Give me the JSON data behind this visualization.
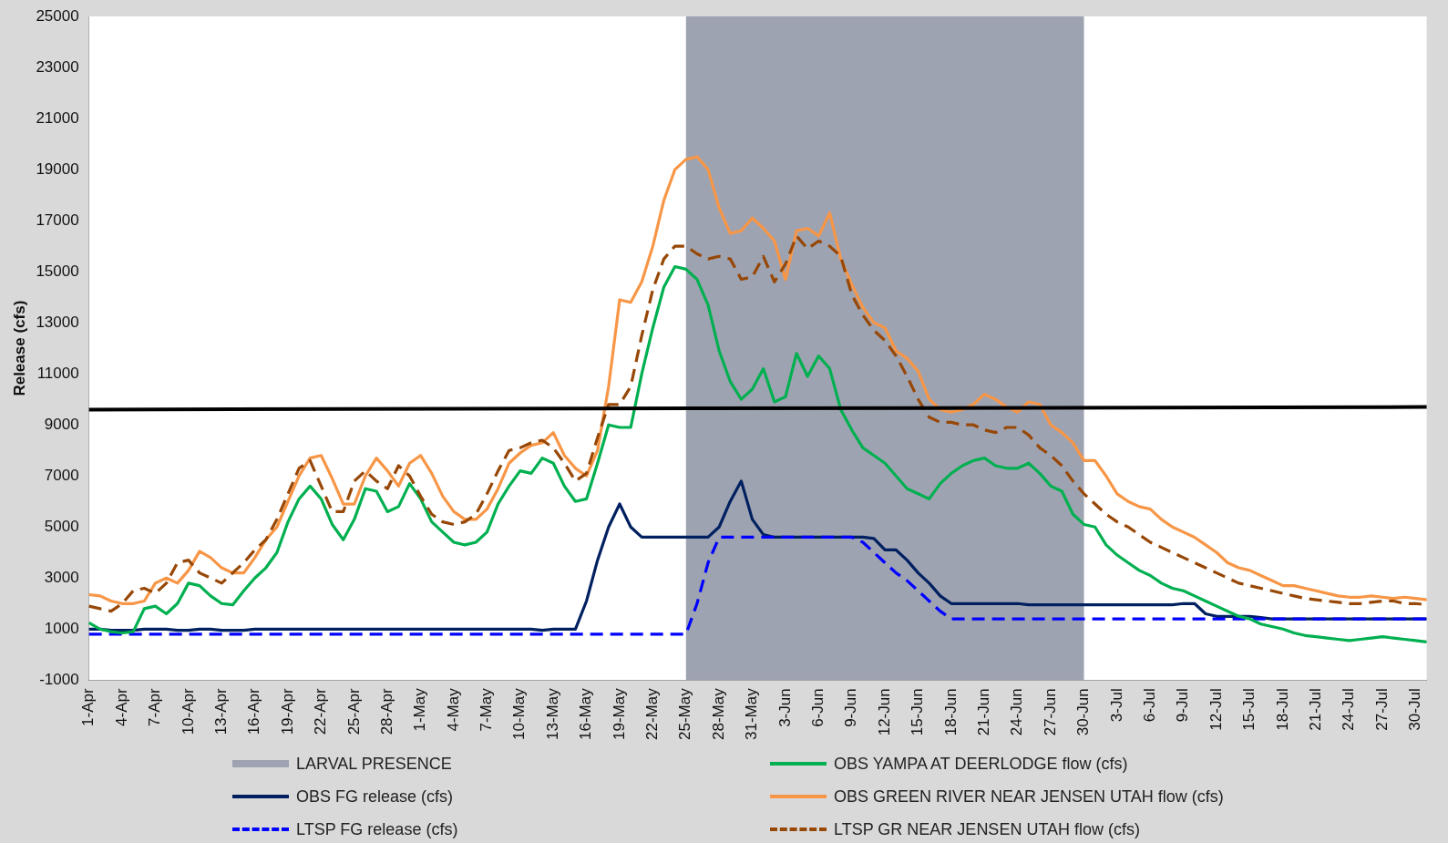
{
  "chart_data": {
    "type": "line",
    "ylabel": "Release (cfs)",
    "ylim": [
      -1000,
      25000
    ],
    "yticks": [
      -1000,
      1000,
      3000,
      5000,
      7000,
      9000,
      11000,
      13000,
      15000,
      17000,
      19000,
      21000,
      23000,
      25000
    ],
    "legend": "bottom",
    "marker": "none",
    "categories": [
      "1-Apr",
      null,
      null,
      "4-Apr",
      null,
      null,
      "7-Apr",
      null,
      null,
      "10-Apr",
      null,
      null,
      "13-Apr",
      null,
      null,
      "16-Apr",
      null,
      null,
      "19-Apr",
      null,
      null,
      "22-Apr",
      null,
      null,
      "25-Apr",
      null,
      null,
      "28-Apr",
      null,
      null,
      "1-May",
      null,
      null,
      "4-May",
      null,
      null,
      "7-May",
      null,
      null,
      "10-May",
      null,
      null,
      "13-May",
      null,
      null,
      "16-May",
      null,
      null,
      "19-May",
      null,
      null,
      "22-May",
      null,
      null,
      "25-May",
      null,
      null,
      "28-May",
      null,
      null,
      "31-May",
      null,
      null,
      "3-Jun",
      null,
      null,
      "6-Jun",
      null,
      null,
      "9-Jun",
      null,
      null,
      "12-Jun",
      null,
      null,
      "15-Jun",
      null,
      null,
      "18-Jun",
      null,
      null,
      "21-Jun",
      null,
      null,
      "24-Jun",
      null,
      null,
      "27-Jun",
      null,
      null,
      "30-Jun",
      null,
      null,
      "3-Jul",
      null,
      null,
      "6-Jul",
      null,
      null,
      "9-Jul",
      null,
      null,
      "12-Jul",
      null,
      null,
      "15-Jul",
      null,
      null,
      "18-Jul",
      null,
      null,
      "21-Jul",
      null,
      null,
      "24-Jul",
      null,
      null,
      "27-Jul",
      null,
      null,
      "30-Jul",
      null
    ],
    "bands": [
      {
        "axis": "x",
        "from": "25-May",
        "to": "30-Jun",
        "label": "LARVAL PRESENCE",
        "color": "#9ea3b2"
      }
    ],
    "series": [
      {
        "name": "OBS FG release (cfs)",
        "color": "#002060",
        "values": [
          1000,
          1000,
          950,
          950,
          950,
          1000,
          1000,
          1000,
          950,
          950,
          1000,
          1000,
          950,
          950,
          950,
          1000,
          1000,
          1000,
          1000,
          1000,
          1000,
          1000,
          1000,
          1000,
          1000,
          1000,
          1000,
          1000,
          1000,
          1000,
          1000,
          1000,
          1000,
          1000,
          1000,
          1000,
          1000,
          1000,
          1000,
          1000,
          1000,
          950,
          1000,
          1000,
          1000,
          2100,
          3700,
          5000,
          5900,
          5000,
          4600,
          4600,
          4600,
          4600,
          4600,
          4600,
          4600,
          5000,
          6000,
          6800,
          5300,
          4700,
          4600,
          4600,
          4600,
          4600,
          4600,
          4600,
          4600,
          4600,
          4600,
          4550,
          4100,
          4100,
          3700,
          3200,
          2800,
          2300,
          2000,
          2000,
          2000,
          2000,
          2000,
          2000,
          2000,
          1950,
          1950,
          1950,
          1950,
          1950,
          1950,
          1950,
          1950,
          1950,
          1950,
          1950,
          1950,
          1950,
          1950,
          2000,
          2000,
          1600,
          1500,
          1500,
          1500,
          1500,
          1450,
          1400,
          1400,
          1400,
          1400,
          1400,
          1400,
          1400,
          1400,
          1400,
          1400,
          1400,
          1400,
          1400,
          1400,
          1400
        ]
      },
      {
        "name": "LTSP FG release (cfs)",
        "color": "#0000ff",
        "line_style": "dashed",
        "values": [
          800,
          800,
          800,
          800,
          800,
          800,
          800,
          800,
          800,
          800,
          800,
          800,
          800,
          800,
          800,
          800,
          800,
          800,
          800,
          800,
          800,
          800,
          800,
          800,
          800,
          800,
          800,
          800,
          800,
          800,
          800,
          800,
          800,
          800,
          800,
          800,
          800,
          800,
          800,
          800,
          800,
          800,
          800,
          800,
          800,
          800,
          800,
          800,
          800,
          800,
          800,
          800,
          800,
          800,
          800,
          2000,
          3600,
          4600,
          4600,
          4600,
          4600,
          4600,
          4600,
          4600,
          4600,
          4600,
          4600,
          4600,
          4600,
          4600,
          4400,
          4000,
          3600,
          3200,
          2900,
          2500,
          2100,
          1700,
          1400,
          1400,
          1400,
          1400,
          1400,
          1400,
          1400,
          1400,
          1400,
          1400,
          1400,
          1400,
          1400,
          1400,
          1400,
          1400,
          1400,
          1400,
          1400,
          1400,
          1400,
          1400,
          1400,
          1400,
          1400,
          1400,
          1400,
          1400,
          1400,
          1400,
          1400,
          1400,
          1400,
          1400,
          1400,
          1400,
          1400,
          1400,
          1400,
          1400,
          1400,
          1400,
          1400,
          1400
        ]
      },
      {
        "name": "OBS YAMPA AT DEERLODGE flow (cfs)",
        "color": "#00b050",
        "values": [
          1250,
          1000,
          900,
          850,
          900,
          1800,
          1900,
          1600,
          2000,
          2800,
          2700,
          2300,
          2000,
          1950,
          2500,
          3000,
          3400,
          4000,
          5200,
          6100,
          6600,
          6100,
          5100,
          4500,
          5300,
          6500,
          6400,
          5600,
          5800,
          6700,
          6100,
          5200,
          4800,
          4400,
          4300,
          4400,
          4800,
          5900,
          6600,
          7200,
          7100,
          7700,
          7500,
          6600,
          6000,
          6100,
          7500,
          9000,
          8900,
          8900,
          11000,
          12800,
          14400,
          15200,
          15100,
          14700,
          13700,
          11900,
          10700,
          10000,
          10400,
          11200,
          9900,
          10100,
          11800,
          10900,
          11700,
          11200,
          9600,
          8800,
          8100,
          7800,
          7500,
          7000,
          6500,
          6300,
          6100,
          6700,
          7100,
          7400,
          7600,
          7700,
          7400,
          7300,
          7300,
          7500,
          7100,
          6600,
          6400,
          5500,
          5100,
          5000,
          4300,
          3900,
          3600,
          3300,
          3100,
          2800,
          2600,
          2500,
          2300,
          2100,
          1900,
          1700,
          1500,
          1400,
          1200,
          1100,
          1000,
          850,
          750,
          700,
          650,
          600,
          550,
          600,
          650,
          700,
          650,
          600,
          550,
          500
        ]
      },
      {
        "name": "OBS GREEN RIVER NEAR JENSEN  UTAH flow (cfs)",
        "color": "#f79646",
        "values": [
          2350,
          2300,
          2100,
          2000,
          2000,
          2100,
          2800,
          3000,
          2800,
          3300,
          4050,
          3800,
          3400,
          3200,
          3200,
          3800,
          4500,
          5000,
          6000,
          7000,
          7700,
          7800,
          6900,
          5900,
          5900,
          7000,
          7700,
          7200,
          6600,
          7500,
          7800,
          7100,
          6200,
          5600,
          5300,
          5300,
          5700,
          6500,
          7500,
          7900,
          8200,
          8300,
          8700,
          7800,
          7300,
          7000,
          8000,
          10500,
          13900,
          13800,
          14600,
          16000,
          17800,
          19000,
          19400,
          19500,
          19000,
          17500,
          16500,
          16600,
          17100,
          16700,
          16200,
          14700,
          16600,
          16700,
          16400,
          17300,
          15500,
          14500,
          13600,
          13000,
          12800,
          11900,
          11600,
          11100,
          10000,
          9600,
          9500,
          9600,
          9800,
          10200,
          10000,
          9700,
          9500,
          9900,
          9800,
          9000,
          8700,
          8300,
          7600,
          7600,
          7000,
          6300,
          6000,
          5800,
          5700,
          5300,
          5000,
          4800,
          4600,
          4300,
          4000,
          3600,
          3400,
          3300,
          3100,
          2900,
          2700,
          2700,
          2600,
          2500,
          2400,
          2300,
          2250,
          2250,
          2300,
          2250,
          2200,
          2250,
          2200,
          2150
        ]
      },
      {
        "name": "LTSP GR NEAR JENSEN UTAH flow (cfs)",
        "color": "#974706",
        "line_style": "dashed",
        "values": [
          1900,
          1800,
          1700,
          2000,
          2500,
          2600,
          2400,
          2800,
          3600,
          3700,
          3200,
          3000,
          2800,
          3200,
          3600,
          4100,
          4500,
          5300,
          6300,
          7300,
          7600,
          6600,
          5600,
          5600,
          6800,
          7200,
          6800,
          6500,
          7400,
          7000,
          6200,
          5500,
          5200,
          5100,
          5200,
          5500,
          6300,
          7200,
          8000,
          8100,
          8300,
          8400,
          8100,
          7500,
          6800,
          7100,
          8500,
          9800,
          9800,
          10500,
          12500,
          14300,
          15500,
          16000,
          16000,
          15700,
          15500,
          15600,
          15500,
          14700,
          14800,
          15600,
          14600,
          15300,
          16400,
          15900,
          16200,
          16000,
          15600,
          14100,
          13300,
          12700,
          12300,
          11700,
          10900,
          10000,
          9300,
          9100,
          9100,
          9000,
          9000,
          8800,
          8700,
          8900,
          8900,
          8600,
          8100,
          7800,
          7400,
          6800,
          6300,
          5900,
          5500,
          5200,
          5000,
          4700,
          4400,
          4200,
          4000,
          3800,
          3600,
          3400,
          3200,
          3000,
          2800,
          2700,
          2600,
          2500,
          2400,
          2300,
          2200,
          2150,
          2100,
          2050,
          2000,
          2000,
          2050,
          2100,
          2100,
          2000,
          2000,
          1950
        ]
      },
      {
        "color": "#000000",
        "values": [
          9600,
          null,
          null,
          null,
          null,
          null,
          null,
          null,
          null,
          null,
          null,
          null,
          null,
          null,
          null,
          null,
          null,
          null,
          null,
          null,
          null,
          null,
          null,
          null,
          null,
          null,
          null,
          null,
          null,
          null,
          null,
          null,
          null,
          null,
          null,
          null,
          null,
          null,
          null,
          null,
          null,
          null,
          null,
          null,
          null,
          null,
          null,
          null,
          null,
          null,
          null,
          null,
          null,
          null,
          null,
          null,
          null,
          null,
          null,
          null,
          null,
          null,
          null,
          null,
          null,
          null,
          null,
          null,
          null,
          null,
          null,
          null,
          null,
          null,
          null,
          null,
          null,
          null,
          null,
          null,
          null,
          null,
          null,
          null,
          null,
          null,
          null,
          null,
          null,
          null,
          null,
          null,
          null,
          null,
          null,
          null,
          null,
          null,
          null,
          null,
          null,
          null,
          null,
          null,
          null,
          null,
          null,
          null,
          null,
          null,
          null,
          null,
          null,
          null,
          null,
          null,
          null,
          null,
          null,
          null,
          null,
          9700
        ]
      }
    ]
  }
}
